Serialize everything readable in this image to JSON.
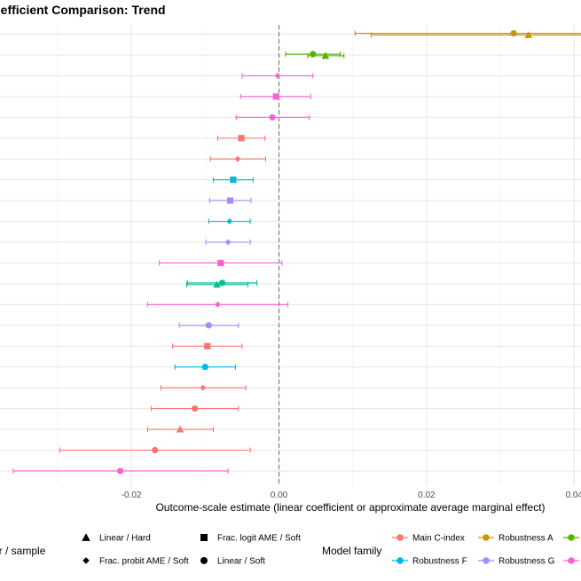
{
  "chart_data": {
    "type": "scatter",
    "title": "Coefficient Comparison: Trend",
    "xlabel": "Outcome-scale estimate (linear coefficient or approximate average marginal effect)",
    "ylabel": "",
    "xlim": [
      -0.038,
      0.041
    ],
    "xticks": [
      -0.02,
      0.0,
      0.02,
      0.04
    ],
    "xtick_labels": [
      "-0.02",
      "0.00",
      "0.02",
      "0.04"
    ],
    "reference_line_x": 0.0,
    "grid": true,
    "legend_position": "bottom",
    "shape_legend_title": "Estimator / sample",
    "color_legend_title": "Model family",
    "shapes": [
      {
        "key": "triangle",
        "label": "Linear / Hard"
      },
      {
        "key": "square",
        "label": "Frac. logit AME / Soft"
      },
      {
        "key": "diamond",
        "label": "Frac. probit AME / Soft"
      },
      {
        "key": "circle",
        "label": "Linear / Soft"
      }
    ],
    "families": [
      {
        "key": "main",
        "label": "Main C-index",
        "color": "#F8766D"
      },
      {
        "key": "robA",
        "label": "Robustness A",
        "color": "#C49A00"
      },
      {
        "key": "robB",
        "label": "",
        "color": "#53B400"
      },
      {
        "key": "robF",
        "label": "Robustness F",
        "color": "#00B6EB"
      },
      {
        "key": "robG",
        "label": "Robustness G",
        "color": "#A58AFF"
      },
      {
        "key": "robH",
        "label": "",
        "color": "#FB61D7"
      },
      {
        "key": "robC",
        "label": "",
        "color": "#00C094"
      }
    ],
    "points": [
      {
        "row": 0,
        "offset": -0.18,
        "family": "robA",
        "shape": "circle",
        "est": 0.0318,
        "lo": 0.0103,
        "hi": 0.0533
      },
      {
        "row": 0,
        "offset": 0.18,
        "family": "robA",
        "shape": "triangle",
        "est": 0.0338,
        "lo": 0.0125,
        "hi": 0.0551
      },
      {
        "row": 1,
        "offset": -0.18,
        "family": "robB",
        "shape": "circle",
        "est": 0.0046,
        "lo": 0.0009,
        "hi": 0.0083
      },
      {
        "row": 1,
        "offset": 0.18,
        "family": "robB",
        "shape": "triangle",
        "est": 0.0063,
        "lo": 0.0039,
        "hi": 0.0088
      },
      {
        "row": 2,
        "offset": 0,
        "family": "robH",
        "shape": "diamond",
        "est": -0.0002,
        "lo": -0.005,
        "hi": 0.0046
      },
      {
        "row": 3,
        "offset": 0,
        "family": "robH",
        "shape": "square",
        "est": -0.0004,
        "lo": -0.0052,
        "hi": 0.0043
      },
      {
        "row": 4,
        "offset": 0,
        "family": "robH",
        "shape": "circle",
        "est": -0.0009,
        "lo": -0.0058,
        "hi": 0.0041
      },
      {
        "row": 5,
        "offset": 0,
        "family": "main",
        "shape": "square",
        "est": -0.0051,
        "lo": -0.0083,
        "hi": -0.0019
      },
      {
        "row": 6,
        "offset": 0,
        "family": "main",
        "shape": "diamond",
        "est": -0.0056,
        "lo": -0.0093,
        "hi": -0.0018
      },
      {
        "row": 7,
        "offset": 0,
        "family": "robF",
        "shape": "square",
        "est": -0.0062,
        "lo": -0.0089,
        "hi": -0.0035
      },
      {
        "row": 8,
        "offset": 0,
        "family": "robG",
        "shape": "square",
        "est": -0.0066,
        "lo": -0.0094,
        "hi": -0.0038
      },
      {
        "row": 9,
        "offset": 0,
        "family": "robF",
        "shape": "diamond",
        "est": -0.0067,
        "lo": -0.0095,
        "hi": -0.0039
      },
      {
        "row": 10,
        "offset": 0,
        "family": "robG",
        "shape": "diamond",
        "est": -0.0069,
        "lo": -0.0099,
        "hi": -0.0039
      },
      {
        "row": 11,
        "offset": 0,
        "family": "robH",
        "shape": "square",
        "est": -0.0079,
        "lo": -0.0162,
        "hi": 0.0004
      },
      {
        "row": 12,
        "offset": -0.18,
        "family": "robC",
        "shape": "circle",
        "est": -0.0077,
        "lo": -0.0124,
        "hi": -0.003
      },
      {
        "row": 12,
        "offset": 0.18,
        "family": "robC",
        "shape": "triangle",
        "est": -0.0084,
        "lo": -0.0125,
        "hi": -0.0042
      },
      {
        "row": 13,
        "offset": 0,
        "family": "robH",
        "shape": "diamond",
        "est": -0.0083,
        "lo": -0.0178,
        "hi": 0.0012
      },
      {
        "row": 14,
        "offset": 0,
        "family": "robG",
        "shape": "circle",
        "est": -0.0095,
        "lo": -0.0135,
        "hi": -0.0055
      },
      {
        "row": 15,
        "offset": 0,
        "family": "main",
        "shape": "square",
        "est": -0.0097,
        "lo": -0.0144,
        "hi": -0.005
      },
      {
        "row": 16,
        "offset": 0,
        "family": "robF",
        "shape": "circle",
        "est": -0.01,
        "lo": -0.0141,
        "hi": -0.0059
      },
      {
        "row": 17,
        "offset": 0,
        "family": "main",
        "shape": "diamond",
        "est": -0.0103,
        "lo": -0.016,
        "hi": -0.0045
      },
      {
        "row": 18,
        "offset": 0,
        "family": "main",
        "shape": "circle",
        "est": -0.0114,
        "lo": -0.0173,
        "hi": -0.0055
      },
      {
        "row": 19,
        "offset": 0,
        "family": "main",
        "shape": "triangle",
        "est": -0.0134,
        "lo": -0.0178,
        "hi": -0.0089
      },
      {
        "row": 20,
        "offset": 0,
        "family": "main",
        "shape": "circle",
        "est": -0.0168,
        "lo": -0.0297,
        "hi": -0.0039
      },
      {
        "row": 21,
        "offset": 0,
        "family": "robH",
        "shape": "circle",
        "est": -0.0215,
        "lo": -0.036,
        "hi": -0.0069
      }
    ]
  }
}
